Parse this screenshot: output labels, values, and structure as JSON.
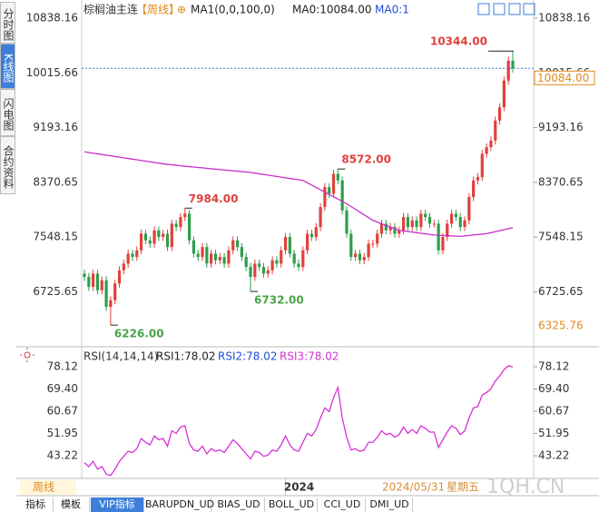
{
  "sidebar": [
    "分时图",
    "K线图",
    "闪电图",
    "合约资料"
  ],
  "toolbar": {
    "tabs": [
      "指标",
      "模板",
      "VIP指标",
      "BARUPDN_UD",
      "BIAS_UD",
      "BOLL_UD",
      "CCI_UD",
      "DMI_UD"
    ]
  },
  "footer": {
    "period": "周线",
    "date": "2024/05/31",
    "weekday": "星期五",
    "watermark": "1QH.CN"
  },
  "chart_data": [
    {
      "type": "candlestick",
      "title": "棕榈油主连",
      "period": "【周线】",
      "header_items": [
        {
          "text": "MA0:10084.00",
          "color": "#222"
        },
        {
          "text": "MA0:1",
          "color": "#1f4fd6"
        }
      ],
      "up_color": "#e0403b",
      "down_color": "#2e9e4a",
      "open": [
        7000,
        6950,
        6800,
        7000,
        6750,
        6900,
        6500,
        6600,
        6850,
        7050,
        7150,
        7300,
        7250,
        7350,
        7600,
        7500,
        7450,
        7650,
        7550,
        7600,
        7400,
        7750,
        7700,
        7850,
        7900,
        7500,
        7300,
        7250,
        7400,
        7150,
        7300,
        7200,
        7250,
        7150,
        7350,
        7500,
        7400,
        7250,
        7100,
        6950,
        7150,
        7100,
        7000,
        7050,
        7200,
        7150,
        7350,
        7550,
        7300,
        7150,
        7100,
        7350,
        7600,
        7550,
        7700,
        8000,
        8300,
        8200,
        8500,
        8400,
        7950,
        7600,
        7250,
        7300,
        7200,
        7250,
        7450,
        7450,
        7600,
        7750,
        7650,
        7700,
        7600,
        7650,
        7850,
        7700,
        7800,
        7700,
        7900,
        7850,
        7750,
        7750,
        7350,
        7550,
        7750,
        7900,
        7850,
        7700,
        7800,
        8150,
        8400,
        8450,
        8800,
        8900,
        9000,
        9300,
        9500,
        9900,
        10200
      ],
      "high": [
        7060,
        7010,
        7060,
        7060,
        6960,
        6960,
        6660,
        6910,
        7110,
        7210,
        7360,
        7360,
        7410,
        7660,
        7660,
        7560,
        7710,
        7710,
        7660,
        7660,
        7810,
        7810,
        7910,
        7984,
        7960,
        7560,
        7360,
        7460,
        7460,
        7360,
        7360,
        7310,
        7310,
        7410,
        7560,
        7560,
        7460,
        7310,
        7160,
        7210,
        7210,
        7160,
        7110,
        7260,
        7260,
        7410,
        7610,
        7610,
        7360,
        7210,
        7410,
        7660,
        7660,
        7760,
        8060,
        8360,
        8360,
        8560,
        8572,
        8460,
        8010,
        7660,
        7360,
        7360,
        7310,
        7510,
        7510,
        7660,
        7810,
        7810,
        7760,
        7760,
        7710,
        7910,
        7910,
        7860,
        7860,
        7960,
        7960,
        7910,
        7810,
        7810,
        7610,
        7810,
        7960,
        7960,
        7910,
        7860,
        8210,
        8460,
        8510,
        8860,
        8960,
        9060,
        9360,
        9560,
        9960,
        10260,
        10344
      ],
      "low": [
        6890,
        6740,
        6740,
        6690,
        6690,
        6440,
        6226,
        6540,
        6790,
        6990,
        7090,
        7190,
        7190,
        7290,
        7440,
        7390,
        7390,
        7490,
        7490,
        7340,
        7340,
        7640,
        7640,
        7790,
        7440,
        7240,
        7190,
        7190,
        7090,
        7090,
        7140,
        7140,
        7090,
        7090,
        7290,
        7340,
        7190,
        7040,
        6732,
        6890,
        7040,
        6940,
        6940,
        6990,
        7090,
        7090,
        7290,
        7240,
        7090,
        7040,
        7040,
        7290,
        7490,
        7490,
        7640,
        7940,
        8140,
        8140,
        8340,
        7890,
        7540,
        7190,
        7190,
        7140,
        7140,
        7190,
        7390,
        7390,
        7540,
        7590,
        7590,
        7540,
        7540,
        7590,
        7640,
        7640,
        7640,
        7640,
        7790,
        7690,
        7690,
        7290,
        7290,
        7490,
        7690,
        7790,
        7640,
        7640,
        7740,
        8090,
        8340,
        8390,
        8740,
        8840,
        8940,
        9240,
        9440,
        9840,
        10024
      ],
      "close": [
        6950,
        6800,
        7000,
        6750,
        6900,
        6500,
        6600,
        6850,
        7050,
        7150,
        7300,
        7250,
        7350,
        7600,
        7500,
        7450,
        7650,
        7550,
        7600,
        7400,
        7750,
        7700,
        7850,
        7900,
        7500,
        7300,
        7250,
        7400,
        7150,
        7300,
        7200,
        7250,
        7150,
        7350,
        7500,
        7400,
        7250,
        7100,
        6950,
        7150,
        7100,
        7000,
        7050,
        7200,
        7150,
        7350,
        7550,
        7300,
        7150,
        7100,
        7350,
        7600,
        7550,
        7700,
        8000,
        8300,
        8200,
        8500,
        8400,
        7950,
        7600,
        7250,
        7300,
        7200,
        7250,
        7450,
        7450,
        7600,
        7750,
        7650,
        7700,
        7600,
        7650,
        7850,
        7700,
        7800,
        7700,
        7900,
        7850,
        7750,
        7750,
        7350,
        7550,
        7750,
        7900,
        7850,
        7700,
        7800,
        8150,
        8400,
        8450,
        8800,
        8900,
        9000,
        9300,
        9500,
        9900,
        10200,
        10084
      ],
      "series": [
        {
          "name": "MA1(0,0,100,0)",
          "color": "#c82ec8",
          "values": [
            8830,
            8820,
            8810,
            8800,
            8790,
            8780,
            8770,
            8760,
            8750,
            8740,
            8730,
            8720,
            8710,
            8700,
            8690,
            8680,
            8670,
            8660,
            8650,
            8640,
            8635,
            8628,
            8620,
            8614,
            8607,
            8601,
            8595,
            8589,
            8582,
            8576,
            8570,
            8564,
            8557,
            8551,
            8545,
            8539,
            8532,
            8526,
            8520,
            8510,
            8500,
            8490,
            8480,
            8470,
            8460,
            8450,
            8440,
            8430,
            8420,
            8410,
            8400,
            8365,
            8330,
            8295,
            8260,
            8225,
            8190,
            8155,
            8120,
            8085,
            8050,
            8008,
            7967,
            7925,
            7883,
            7842,
            7800,
            7775,
            7750,
            7725,
            7700,
            7675,
            7650,
            7641,
            7633,
            7624,
            7615,
            7606,
            7598,
            7589,
            7580,
            7577,
            7573,
            7570,
            7567,
            7563,
            7560,
            7567,
            7573,
            7580,
            7587,
            7593,
            7600,
            7615,
            7630,
            7645,
            7660,
            7675,
            7690
          ]
        }
      ],
      "annotations": [
        {
          "value": 10344,
          "label": "10344.00"
        },
        {
          "value": 8572,
          "label": "8572.00"
        },
        {
          "value": 7984,
          "label": "7984.00"
        },
        {
          "value": 6732,
          "label": "6732.00"
        },
        {
          "value": 6226,
          "label": "6226.00"
        }
      ],
      "last": {
        "value": 10084,
        "label": "10084.00"
      },
      "axis_low": 6325.76,
      "ylim": [
        5928,
        11002
      ],
      "yticks": [
        10838.16,
        10015.66,
        9193.16,
        8370.65,
        7548.15,
        6725.65
      ]
    },
    {
      "type": "line",
      "title": "RSI(14,14,14)",
      "legend": [
        {
          "label": "RSI1:78.02",
          "color": "#222"
        },
        {
          "label": "RSI2:78.02",
          "color": "#1f4fd6"
        },
        {
          "label": "RSI3:78.02",
          "color": "#d531d5"
        }
      ],
      "series": [
        {
          "color": "#d531d5",
          "values": [
            40.5,
            39,
            41,
            38,
            39,
            36,
            35.5,
            38,
            41,
            43,
            45,
            44.5,
            46,
            50,
            48.5,
            47.5,
            51,
            49.5,
            50,
            47,
            53,
            52,
            54.5,
            55,
            48,
            45.5,
            45,
            47,
            44,
            46,
            45,
            45.5,
            44.5,
            47,
            49.5,
            48,
            46,
            44,
            42,
            45,
            44.5,
            43,
            43.5,
            45.5,
            45,
            47.5,
            51,
            47.5,
            45.5,
            45,
            48.5,
            52,
            51,
            53.5,
            58,
            62,
            60.5,
            66,
            70,
            58,
            50.5,
            45.5,
            46,
            45,
            45.5,
            48.5,
            48.5,
            50.5,
            53,
            51.5,
            52,
            50.5,
            51.5,
            54.5,
            52,
            53.5,
            52,
            55,
            54,
            52.5,
            52.5,
            46.5,
            49.5,
            52.5,
            55,
            54,
            51.5,
            53,
            58,
            62,
            62.5,
            67,
            68,
            69.5,
            72.5,
            74.5,
            77,
            78.5,
            78.02
          ]
        }
      ],
      "xlim": [
        0,
        98
      ],
      "xticks": [
        {
          "value": 46,
          "label": "2024"
        }
      ],
      "ylim": [
        34,
        83.8
      ],
      "yticks": [
        78.12,
        {
          "value": 69.4,
          "label": "69.40"
        },
        60.67,
        51.95,
        43.22
      ]
    }
  ]
}
